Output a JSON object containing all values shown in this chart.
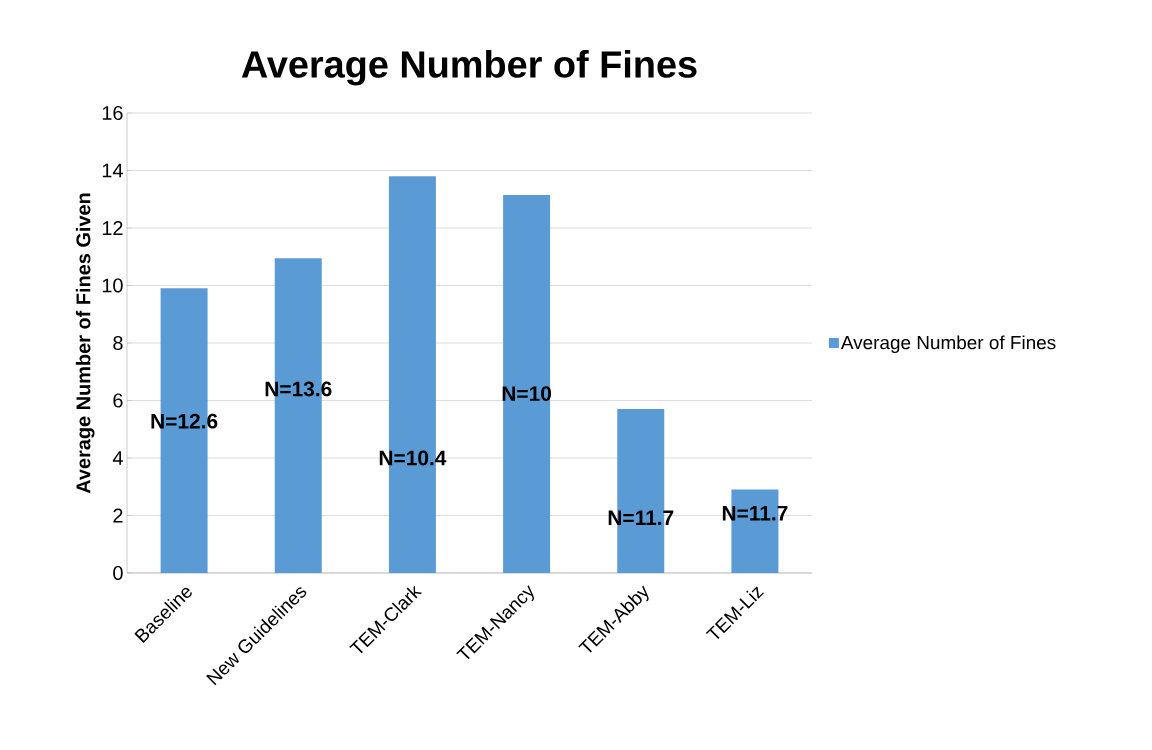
{
  "chart_data": {
    "type": "bar",
    "title": "Average Number of Fines",
    "ylabel": "Average Number of Fines Given",
    "categories": [
      "Baseline",
      "New Guidelines",
      "TEM-Clark",
      "TEM-Nancy",
      "TEM-Abby",
      "TEM-Liz"
    ],
    "series": [
      {
        "name": "Average Number of Fines",
        "color": "#5b9bd5",
        "values": [
          9.9,
          10.95,
          13.8,
          13.15,
          5.7,
          2.9
        ]
      }
    ],
    "ylim": [
      0,
      16
    ],
    "yticks": [
      0,
      2,
      4,
      6,
      8,
      10,
      12,
      14,
      16
    ],
    "grid": "y",
    "legend": "right",
    "annotations": [
      "N=12.6",
      "N=13.6",
      "N=10.4",
      "N=10",
      "N=11.7",
      "N=11.7"
    ]
  }
}
